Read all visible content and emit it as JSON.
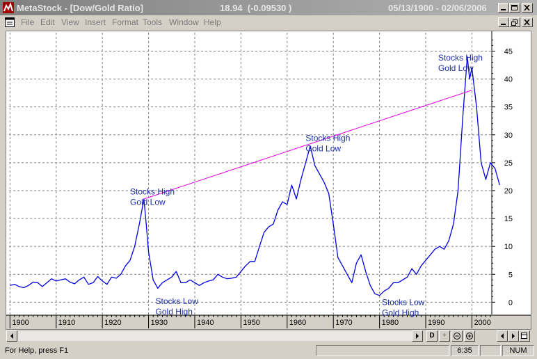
{
  "window": {
    "app_title": "MetaStock - [Dow/Gold Ratio]",
    "readout": "18.94  (-0.09530 )",
    "date_range": "05/13/1900 - 02/06/2006"
  },
  "menu": [
    "File",
    "Edit",
    "View",
    "Insert",
    "Format",
    "Tools",
    "Window",
    "Help"
  ],
  "status": {
    "help_text": "For Help, press F1",
    "time": "6:35",
    "num": "NUM"
  },
  "scroll_buttons": [
    "D",
    "+",
    "-",
    "+"
  ],
  "colors": {
    "price_line": "#0000e0",
    "trend_line": "#e000e0",
    "annotation_text": "#1c2fa0"
  },
  "chart_data": {
    "type": "line",
    "series": [
      {
        "name": "Dow/Gold Ratio",
        "x": [
          1900,
          1901,
          1902,
          1903,
          1904,
          1905,
          1906,
          1907,
          1908,
          1909,
          1910,
          1911,
          1912,
          1913,
          1914,
          1915,
          1916,
          1917,
          1918,
          1919,
          1920,
          1921,
          1922,
          1923,
          1924,
          1925,
          1926,
          1927,
          1928,
          1929,
          1929.5,
          1930,
          1931,
          1932,
          1933,
          1934,
          1935,
          1936,
          1937,
          1938,
          1939,
          1940,
          1941,
          1942,
          1943,
          1944,
          1945,
          1946,
          1947,
          1948,
          1949,
          1950,
          1951,
          1952,
          1953,
          1954,
          1955,
          1956,
          1957,
          1958,
          1959,
          1960,
          1961,
          1962,
          1963,
          1964,
          1965,
          1966,
          1967,
          1968,
          1969,
          1970,
          1971,
          1972,
          1973,
          1974,
          1975,
          1976,
          1977,
          1978,
          1979,
          1980,
          1981,
          1982,
          1983,
          1984,
          1985,
          1986,
          1987,
          1988,
          1989,
          1990,
          1991,
          1992,
          1993,
          1994,
          1995,
          1996,
          1997,
          1998,
          1999,
          1999.5,
          2000,
          2001,
          2002,
          2003,
          2004,
          2005,
          2006
        ],
        "y": [
          3,
          3.2,
          2.8,
          2.6,
          3,
          3.6,
          3.5,
          2.8,
          3.5,
          4.2,
          3.8,
          4,
          4.2,
          3.6,
          3.3,
          4,
          4.5,
          3.2,
          3.5,
          4.6,
          3.8,
          3.2,
          4.5,
          4.3,
          5,
          6.5,
          7.5,
          10,
          14,
          18.5,
          14,
          9,
          4,
          2.5,
          3.5,
          4,
          4.5,
          5.5,
          3.5,
          3.5,
          4,
          3.5,
          3,
          3.5,
          3.8,
          4,
          5,
          4.5,
          4.2,
          4.3,
          4.5,
          5.5,
          6.5,
          7.3,
          7.3,
          10,
          12.5,
          13.5,
          14,
          16.5,
          18,
          17.5,
          21,
          18.5,
          22,
          25,
          28,
          24.5,
          23,
          21.5,
          19.5,
          14,
          8,
          6.5,
          5,
          3.5,
          7,
          8.5,
          5.5,
          3,
          1.5,
          1.2,
          2,
          2.5,
          3.5,
          3.5,
          4,
          4.5,
          6,
          5,
          6.5,
          7.5,
          8.5,
          9.5,
          10,
          9.5,
          11,
          14,
          20,
          33,
          44,
          40,
          42,
          35,
          25,
          22,
          25,
          24,
          21
        ]
      }
    ],
    "trendline": {
      "x": [
        1929,
        2000
      ],
      "y": [
        18.5,
        38
      ]
    },
    "annotations": [
      {
        "x": 1926,
        "y": 19.3,
        "lines": [
          "Stocks High",
          "Gold Low"
        ]
      },
      {
        "x": 1931.5,
        "y": -0.3,
        "lines": [
          "Stocks Low",
          "Gold High"
        ]
      },
      {
        "x": 1964,
        "y": 28.9,
        "lines": [
          "Stocks High",
          "Gold Low"
        ]
      },
      {
        "x": 1980.5,
        "y": -0.5,
        "lines": [
          "Stocks Low",
          "Gold High"
        ]
      },
      {
        "x": 1992.7,
        "y": 43.3,
        "lines": [
          "Stocks High",
          "Gold Low"
        ]
      }
    ],
    "x_ticks": [
      "1900",
      "1910",
      "1920",
      "1930",
      "1940",
      "1950",
      "1960",
      "1970",
      "1980",
      "1990",
      "2000"
    ],
    "y_ticks": [
      0,
      5,
      10,
      15,
      20,
      25,
      30,
      35,
      40,
      45
    ],
    "xlim": [
      1899.8,
      2004.3
    ],
    "ylim": [
      -2.2,
      48.3
    ],
    "grid": true
  }
}
